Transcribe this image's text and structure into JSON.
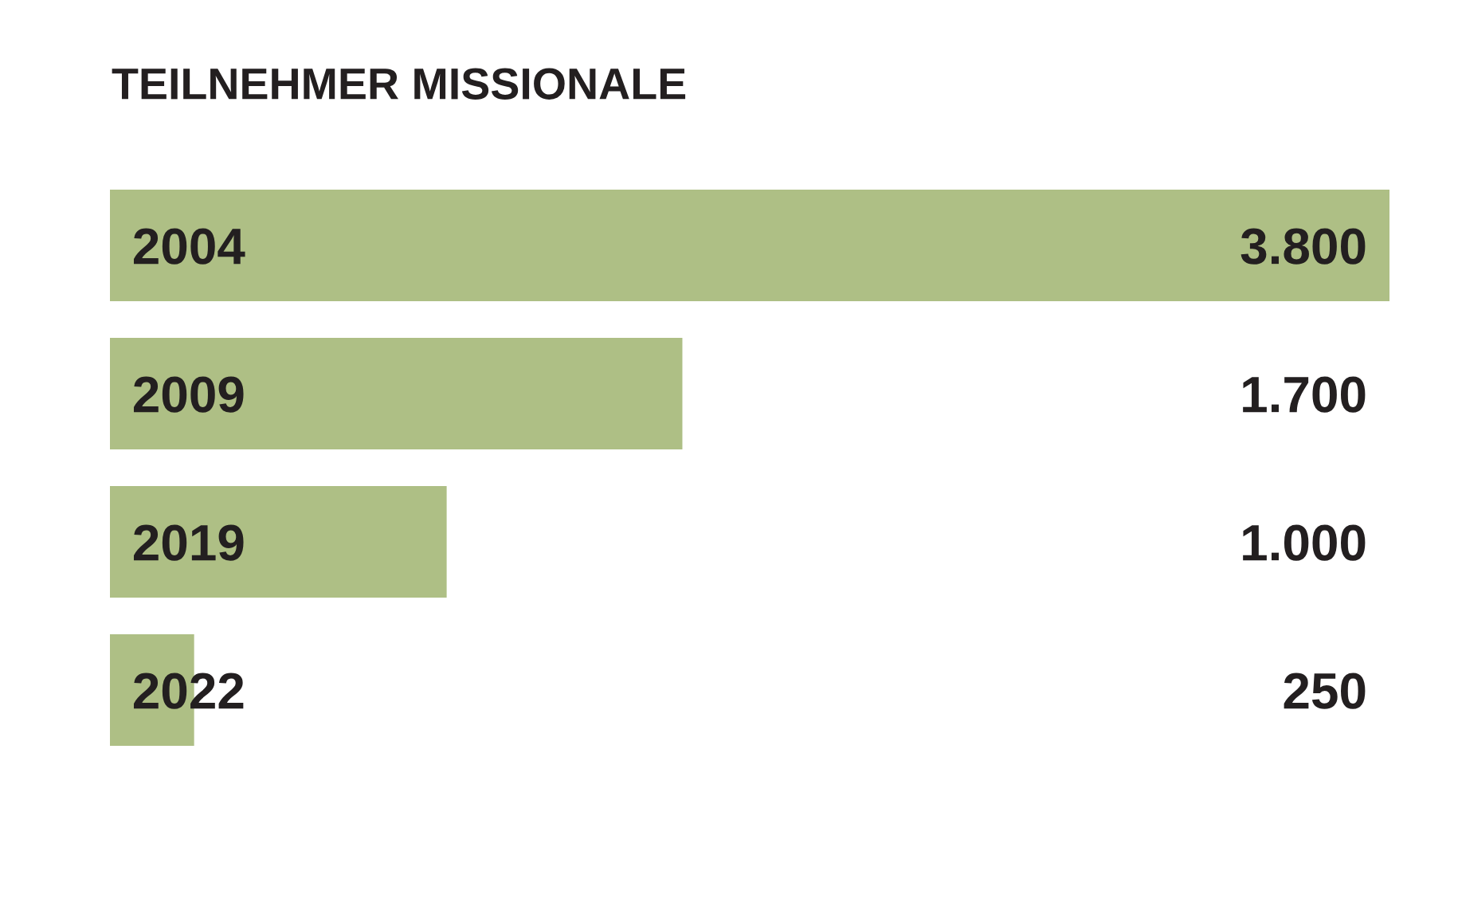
{
  "chart_data": {
    "type": "bar",
    "orientation": "horizontal",
    "title": "TEILNEHMER MISSIONALE",
    "categories": [
      "2004",
      "2009",
      "2019",
      "2022"
    ],
    "values": [
      3800,
      1700,
      1000,
      250
    ],
    "value_labels": [
      "3.800",
      "1.700",
      "1.000",
      "250"
    ],
    "color": "#aebf85",
    "xlim": [
      0,
      3800
    ],
    "tick_labels": "y"
  }
}
